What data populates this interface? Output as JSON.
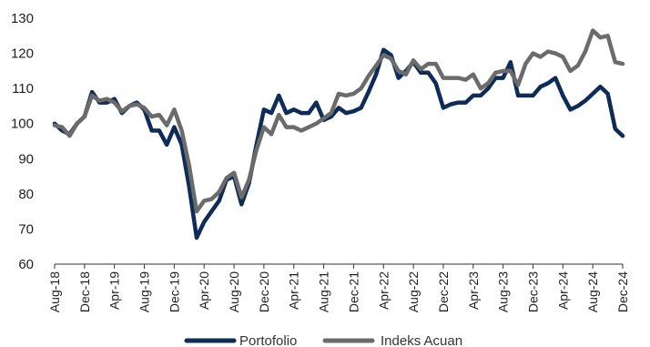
{
  "chart_data": {
    "type": "line",
    "title": "",
    "xlabel": "",
    "ylabel": "",
    "ylim": [
      60,
      130
    ],
    "yticks": [
      "60",
      "70",
      "80",
      "90",
      "100",
      "110",
      "120",
      "130"
    ],
    "grid": false,
    "legend_position": "bottom",
    "x_tick_labels": [
      "Aug-18",
      "Dec-18",
      "Apr-19",
      "Aug-19",
      "Dec-19",
      "Apr-20",
      "Aug-20",
      "Dec-20",
      "Apr-21",
      "Aug-21",
      "Dec-21",
      "Apr-22",
      "Aug-22",
      "Dec-22",
      "Apr-23",
      "Aug-23",
      "Dec-23",
      "Apr-24",
      "Aug-24",
      "Dec-24"
    ],
    "x": [
      "Aug-18",
      "Sep-18",
      "Oct-18",
      "Nov-18",
      "Dec-18",
      "Jan-19",
      "Feb-19",
      "Mar-19",
      "Apr-19",
      "May-19",
      "Jun-19",
      "Jul-19",
      "Aug-19",
      "Sep-19",
      "Oct-19",
      "Nov-19",
      "Dec-19",
      "Jan-20",
      "Feb-20",
      "Mar-20",
      "Apr-20",
      "May-20",
      "Jun-20",
      "Jul-20",
      "Aug-20",
      "Sep-20",
      "Oct-20",
      "Nov-20",
      "Dec-20",
      "Jan-21",
      "Feb-21",
      "Mar-21",
      "Apr-21",
      "May-21",
      "Jun-21",
      "Jul-21",
      "Aug-21",
      "Sep-21",
      "Oct-21",
      "Nov-21",
      "Dec-21",
      "Jan-22",
      "Feb-22",
      "Mar-22",
      "Apr-22",
      "May-22",
      "Jun-22",
      "Jul-22",
      "Aug-22",
      "Sep-22",
      "Oct-22",
      "Nov-22",
      "Dec-22",
      "Jan-23",
      "Feb-23",
      "Mar-23",
      "Apr-23",
      "May-23",
      "Jun-23",
      "Jul-23",
      "Aug-23",
      "Sep-23",
      "Oct-23",
      "Nov-23",
      "Dec-23",
      "Jan-24",
      "Feb-24",
      "Mar-24",
      "Apr-24",
      "May-24",
      "Jun-24",
      "Jul-24",
      "Aug-24",
      "Sep-24",
      "Oct-24",
      "Nov-24",
      "Dec-24"
    ],
    "series": [
      {
        "name": "Portofolio",
        "color": "#0d2c57",
        "values": [
          100,
          98,
          97,
          100,
          102,
          109,
          106,
          106,
          107,
          103,
          105,
          106,
          104,
          98,
          98,
          94,
          99,
          94,
          82,
          67.5,
          72,
          75,
          78,
          84,
          85,
          77,
          83,
          94,
          104,
          103,
          108,
          103,
          104,
          103,
          103,
          106,
          101,
          102,
          104.5,
          103,
          103.5,
          104.5,
          109,
          114,
          121,
          119.5,
          113,
          115,
          117.5,
          114.5,
          114.5,
          111.5,
          104.5,
          105.5,
          106,
          106,
          108,
          108,
          110,
          113,
          113,
          117.5,
          108,
          108,
          108,
          110.5,
          111.5,
          113,
          108,
          104,
          105,
          106.5,
          108.5,
          110.5,
          108.5,
          98.5,
          96.5
        ]
      },
      {
        "name": "Indeks Acuan",
        "color": "#6b6b6b",
        "values": [
          99.5,
          99,
          96.5,
          100,
          102,
          108,
          106.5,
          107,
          106,
          103.5,
          105,
          105.5,
          104.5,
          102,
          102.5,
          99.5,
          104,
          98,
          88,
          75,
          78,
          78.5,
          80.5,
          84.5,
          86,
          79,
          84,
          92.5,
          99,
          97,
          102.5,
          99,
          99,
          98,
          99,
          100,
          101.5,
          103,
          108.5,
          108,
          108.5,
          110,
          113.5,
          116.5,
          119.5,
          118.5,
          115,
          114,
          118,
          115.5,
          117,
          117,
          113,
          113,
          113,
          112.5,
          114,
          110,
          111.5,
          114.5,
          115,
          115,
          111,
          117,
          120,
          119,
          120.5,
          120,
          119,
          115,
          116.5,
          120.5,
          126.5,
          124.5,
          125,
          117.5,
          117
        ]
      }
    ]
  }
}
